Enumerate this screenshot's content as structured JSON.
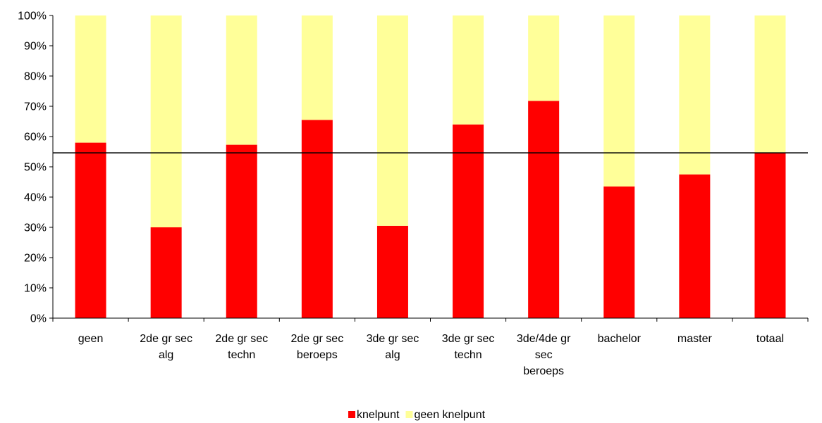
{
  "chart_data": {
    "type": "bar",
    "stacked": true,
    "percent": true,
    "categories": [
      [
        "geen"
      ],
      [
        "2de gr sec",
        "alg"
      ],
      [
        "2de gr sec",
        "techn"
      ],
      [
        "2de gr sec",
        "beroeps"
      ],
      [
        "3de gr sec",
        "alg"
      ],
      [
        "3de gr sec",
        "techn"
      ],
      [
        "3de/4de gr",
        "sec",
        "beroeps"
      ],
      [
        "bachelor"
      ],
      [
        "master"
      ],
      [
        "totaal"
      ]
    ],
    "series": [
      {
        "name": "knelpunt",
        "color": "#ff0000",
        "values": [
          58,
          30,
          57.3,
          65.5,
          30.5,
          64,
          71.8,
          43.5,
          47.5,
          54.6
        ]
      },
      {
        "name": "geen knelpunt",
        "color": "#ffff99",
        "values": [
          42,
          70,
          42.7,
          34.5,
          69.5,
          36,
          28.2,
          56.5,
          52.5,
          45.4
        ]
      }
    ],
    "reference_line": 54.6,
    "ylim": [
      0,
      100
    ],
    "yticks": [
      "0%",
      "10%",
      "20%",
      "30%",
      "40%",
      "50%",
      "60%",
      "70%",
      "80%",
      "90%",
      "100%"
    ],
    "grid": false,
    "legend": "bottom"
  }
}
